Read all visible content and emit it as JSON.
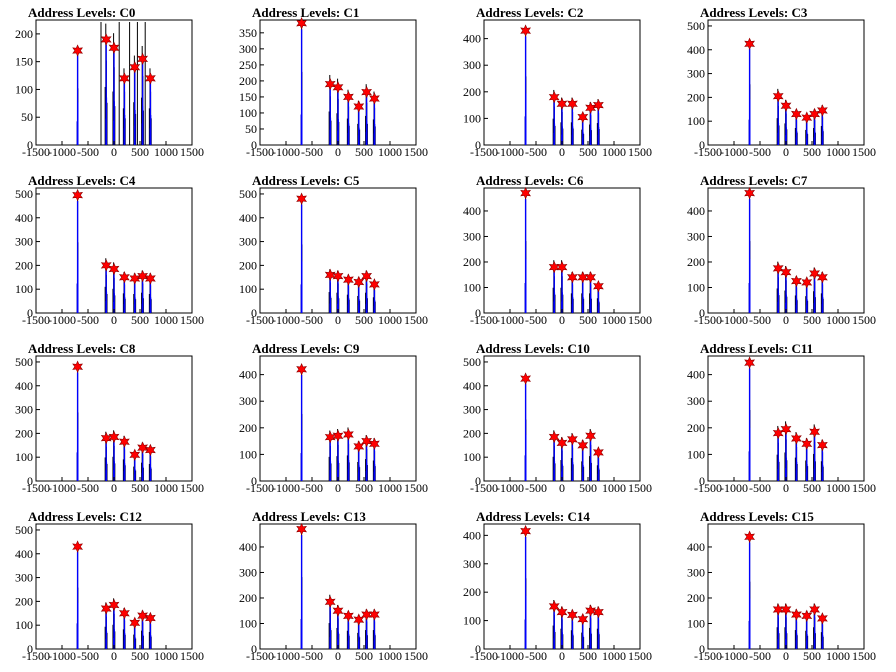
{
  "chart_data": {
    "type": "histogram",
    "xlim": [
      -1500,
      1500
    ],
    "xticks": [
      -1500,
      -1000,
      -500,
      0,
      500,
      1000,
      1500
    ],
    "peak_positions": [
      -700,
      -150,
      0,
      200,
      400,
      550,
      700
    ],
    "colors": {
      "hist_black": "#000000",
      "hist_blue": "#0000ff",
      "marker": "#ff0000",
      "marker_edge": "#8b0000"
    },
    "panels": [
      {
        "title": "Address Levels: C0",
        "ylim": [
          0,
          225
        ],
        "yticks": [
          0,
          50,
          100,
          150,
          200
        ],
        "peaks": [
          170,
          190,
          175,
          120,
          140,
          155,
          120
        ],
        "extra_x": [
          -250,
          100,
          300,
          450,
          600
        ]
      },
      {
        "title": "Address Levels: C1",
        "ylim": [
          0,
          390
        ],
        "yticks": [
          0,
          50,
          100,
          150,
          200,
          250,
          300,
          350
        ],
        "peaks": [
          380,
          190,
          180,
          150,
          120,
          165,
          145
        ],
        "extra_x": []
      },
      {
        "title": "Address Levels: C2",
        "ylim": [
          0,
          470
        ],
        "yticks": [
          0,
          100,
          200,
          300,
          400
        ],
        "peaks": [
          430,
          180,
          155,
          155,
          105,
          140,
          150
        ],
        "extra_x": []
      },
      {
        "title": "Address Levels: C3",
        "ylim": [
          0,
          525
        ],
        "yticks": [
          0,
          100,
          200,
          300,
          400,
          500
        ],
        "peaks": [
          425,
          205,
          165,
          130,
          115,
          130,
          145
        ],
        "extra_x": []
      },
      {
        "title": "Address Levels: C4",
        "ylim": [
          0,
          525
        ],
        "yticks": [
          0,
          100,
          200,
          300,
          400,
          500
        ],
        "peaks": [
          495,
          200,
          185,
          150,
          145,
          155,
          145
        ],
        "extra_x": []
      },
      {
        "title": "Address Levels: C5",
        "ylim": [
          0,
          525
        ],
        "yticks": [
          0,
          100,
          200,
          300,
          400,
          500
        ],
        "peaks": [
          480,
          160,
          155,
          140,
          130,
          155,
          120
        ],
        "extra_x": []
      },
      {
        "title": "Address Levels: C6",
        "ylim": [
          0,
          490
        ],
        "yticks": [
          0,
          100,
          200,
          300,
          400
        ],
        "peaks": [
          470,
          180,
          180,
          140,
          140,
          140,
          105
        ],
        "extra_x": []
      },
      {
        "title": "Address Levels: C7",
        "ylim": [
          0,
          490
        ],
        "yticks": [
          0,
          100,
          200,
          300,
          400
        ],
        "peaks": [
          470,
          175,
          160,
          125,
          120,
          155,
          140
        ],
        "extra_x": []
      },
      {
        "title": "Address Levels: C8",
        "ylim": [
          0,
          525
        ],
        "yticks": [
          0,
          100,
          200,
          300,
          400,
          500
        ],
        "peaks": [
          480,
          180,
          185,
          165,
          110,
          140,
          130
        ],
        "extra_x": []
      },
      {
        "title": "Address Levels: C9",
        "ylim": [
          0,
          470
        ],
        "yticks": [
          0,
          100,
          200,
          300,
          400
        ],
        "peaks": [
          420,
          165,
          170,
          175,
          130,
          150,
          140
        ],
        "extra_x": []
      },
      {
        "title": "Address Levels: C10",
        "ylim": [
          0,
          525
        ],
        "yticks": [
          0,
          100,
          200,
          300,
          400,
          500
        ],
        "peaks": [
          430,
          185,
          160,
          175,
          150,
          190,
          120
        ],
        "extra_x": []
      },
      {
        "title": "Address Levels: C11",
        "ylim": [
          0,
          470
        ],
        "yticks": [
          0,
          100,
          200,
          300,
          400
        ],
        "peaks": [
          445,
          180,
          195,
          160,
          140,
          185,
          135
        ],
        "extra_x": []
      },
      {
        "title": "Address Levels: C12",
        "ylim": [
          0,
          525
        ],
        "yticks": [
          0,
          100,
          200,
          300,
          400,
          500
        ],
        "peaks": [
          430,
          170,
          185,
          150,
          110,
          140,
          130
        ],
        "extra_x": []
      },
      {
        "title": "Address Levels: C13",
        "ylim": [
          0,
          490
        ],
        "yticks": [
          0,
          100,
          200,
          300,
          400
        ],
        "peaks": [
          470,
          185,
          150,
          130,
          115,
          135,
          135
        ],
        "extra_x": []
      },
      {
        "title": "Address Levels: C14",
        "ylim": [
          0,
          440
        ],
        "yticks": [
          0,
          100,
          200,
          300,
          400
        ],
        "peaks": [
          415,
          150,
          130,
          120,
          105,
          135,
          130
        ],
        "extra_x": []
      },
      {
        "title": "Address Levels: C15",
        "ylim": [
          0,
          490
        ],
        "yticks": [
          0,
          100,
          200,
          300,
          400
        ],
        "peaks": [
          440,
          155,
          155,
          135,
          130,
          155,
          120
        ],
        "extra_x": []
      }
    ]
  }
}
